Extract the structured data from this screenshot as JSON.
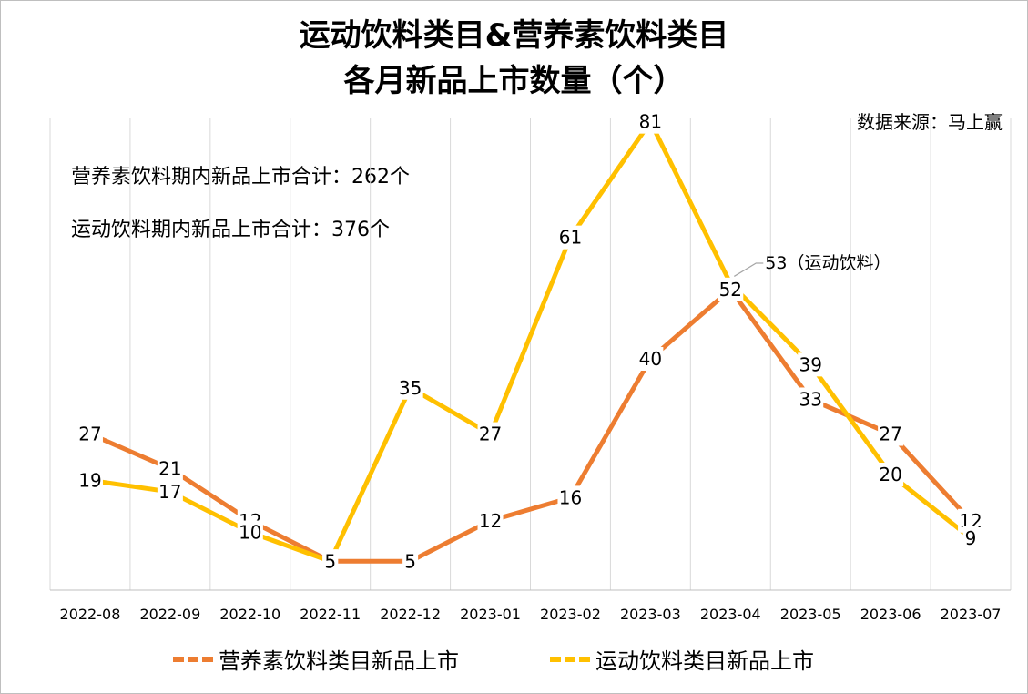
{
  "title_line1": "运动饮料类目&营养素饮料类目",
  "title_line2": "各月新品上市数量（个）",
  "source": "数据来源：马上赢",
  "notes": {
    "nutrition_total": "营养素饮料期内新品上市合计：262个",
    "sports_total": "运动饮料期内新品上市合计：376个"
  },
  "callout": "53（运动饮料）",
  "chart_data": {
    "type": "line",
    "categories": [
      "2022-08",
      "2022-09",
      "2022-10",
      "2022-11",
      "2022-12",
      "2023-01",
      "2023-02",
      "2023-03",
      "2023-04",
      "2023-05",
      "2023-06",
      "2023-07"
    ],
    "series": [
      {
        "name": "营养素饮料类目新品上市",
        "color": "#ED7D31",
        "values": [
          27,
          21,
          12,
          5,
          5,
          12,
          16,
          40,
          52,
          33,
          27,
          12
        ]
      },
      {
        "name": "运动饮料类目新品上市",
        "color": "#FFC000",
        "values": [
          19,
          17,
          10,
          5,
          35,
          27,
          61,
          81,
          53,
          39,
          20,
          9
        ]
      }
    ],
    "ylim": [
      0,
      90
    ],
    "grid": "vertical",
    "legend": "bottom"
  }
}
